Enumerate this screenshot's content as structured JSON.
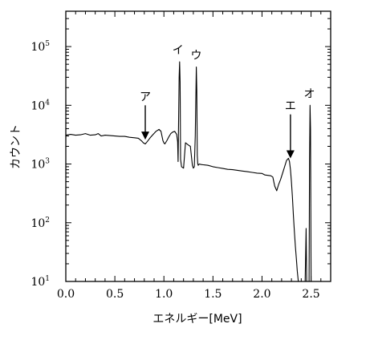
{
  "chart_data": {
    "type": "line",
    "title": "",
    "xlabel": "エネルギー[MeV]",
    "ylabel": "カウント",
    "xlim": [
      0.0,
      2.7
    ],
    "ylim": [
      10,
      400000
    ],
    "yscale": "log",
    "grid": false,
    "x_ticks": [
      0.0,
      0.5,
      1.0,
      1.5,
      2.0,
      2.5
    ],
    "x_tick_labels": [
      "0.0",
      "0.5",
      "1.0",
      "1.5",
      "2.0",
      "2.5"
    ],
    "y_ticks": [
      {
        "value": 10,
        "base": "10",
        "exp": "1"
      },
      {
        "value": 100,
        "base": "10",
        "exp": "2"
      },
      {
        "value": 1000,
        "base": "10",
        "exp": "3"
      },
      {
        "value": 10000,
        "base": "10",
        "exp": "4"
      },
      {
        "value": 100000,
        "base": "10",
        "exp": "5"
      }
    ],
    "series": [
      {
        "x": [
          0.0,
          0.05,
          0.1,
          0.15,
          0.2,
          0.25,
          0.3,
          0.33,
          0.36,
          0.4,
          0.45,
          0.5,
          0.55,
          0.6,
          0.65,
          0.7,
          0.74,
          0.77,
          0.79,
          0.81,
          0.83,
          0.86,
          0.89,
          0.92,
          0.95,
          0.97,
          0.98,
          0.99,
          1.0,
          1.01,
          1.03,
          1.05,
          1.07,
          1.09,
          1.11,
          1.13,
          1.14,
          1.145,
          1.155,
          1.16,
          1.165,
          1.17,
          1.18,
          1.2,
          1.22,
          1.25,
          1.27,
          1.29,
          1.3,
          1.31,
          1.32,
          1.33,
          1.335,
          1.34,
          1.345,
          1.35,
          1.36,
          1.38,
          1.4,
          1.45,
          1.5,
          1.55,
          1.6,
          1.65,
          1.7,
          1.75,
          1.8,
          1.85,
          1.9,
          1.95,
          2.0,
          2.03,
          2.06,
          2.09,
          2.11,
          2.13,
          2.15,
          2.17,
          2.19,
          2.21,
          2.23,
          2.25,
          2.27,
          2.28,
          2.29,
          2.3,
          2.31,
          2.32,
          2.33,
          2.34,
          2.35,
          2.36,
          2.37,
          2.38,
          2.39,
          2.4,
          2.405,
          2.41,
          2.42,
          2.43,
          2.44,
          2.45,
          2.455,
          2.46,
          2.465,
          2.47,
          2.475,
          2.48,
          2.485,
          2.49,
          2.495,
          2.5,
          2.505
        ],
        "y": [
          3100,
          3200,
          3100,
          3150,
          3300,
          3100,
          3150,
          3300,
          3000,
          3100,
          3050,
          3000,
          2950,
          2950,
          2850,
          2800,
          2750,
          2500,
          2300,
          2200,
          2400,
          2800,
          3200,
          3600,
          3900,
          3600,
          3000,
          2500,
          2300,
          2200,
          2500,
          2900,
          3300,
          3500,
          3600,
          3200,
          2400,
          1100,
          30000,
          55000,
          25000,
          1200,
          900,
          850,
          2300,
          2100,
          2000,
          950,
          850,
          900,
          3000,
          45000,
          18000,
          1400,
          1000,
          950,
          1000,
          980,
          970,
          950,
          900,
          870,
          840,
          810,
          800,
          780,
          760,
          740,
          720,
          700,
          690,
          650,
          640,
          630,
          600,
          420,
          350,
          450,
          550,
          700,
          900,
          1150,
          1250,
          1100,
          800,
          500,
          280,
          130,
          70,
          40,
          25,
          15,
          10,
          10,
          10,
          10,
          10,
          10,
          10,
          10,
          10,
          80,
          10,
          10,
          10,
          10,
          10,
          10,
          1200,
          10000,
          4000,
          10,
          10
        ]
      }
    ],
    "annotations": [
      {
        "label": "ア",
        "x": 0.81,
        "arrow_from": 10000,
        "arrow_to": 2600
      },
      {
        "label": "イ",
        "x": 1.16
      },
      {
        "label": "ウ",
        "x": 1.33
      },
      {
        "label": "エ",
        "x": 2.29,
        "arrow_from": 7000,
        "arrow_to": 1250
      },
      {
        "label": "オ",
        "x": 2.5
      }
    ]
  }
}
